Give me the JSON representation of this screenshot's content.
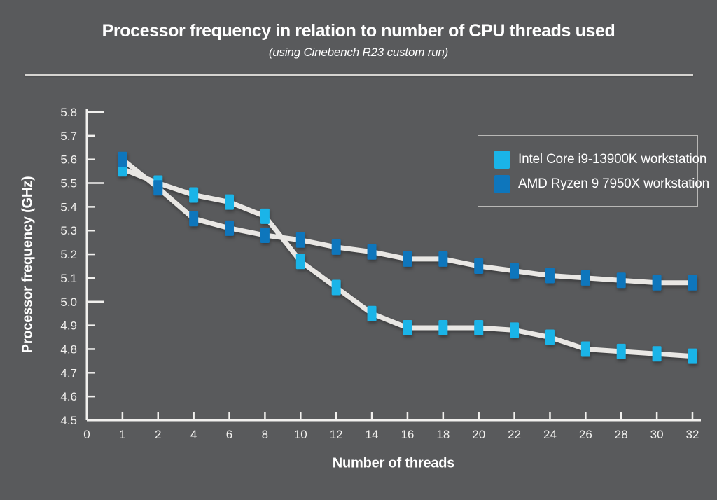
{
  "chart_data": {
    "type": "line",
    "title": "Processor frequency in relation to number of CPU threads used",
    "subtitle": "(using Cinebench R23 custom run)",
    "xlabel": "Number of threads",
    "ylabel": "Processor frequency (GHz)",
    "ylim": [
      4.5,
      5.8
    ],
    "y_tick_step": 0.1,
    "y_tick_labels": [
      "5.8",
      "5.7",
      "5.6",
      "5.5",
      "5.4",
      "5.3",
      "5.2",
      "5.1",
      "5.0",
      "4.9",
      "4.8",
      "4.7",
      "4.6",
      "4.5"
    ],
    "x_tick_labels": [
      "0",
      "1",
      "2",
      "4",
      "6",
      "8",
      "10",
      "12",
      "14",
      "16",
      "18",
      "20",
      "22",
      "24",
      "26",
      "28",
      "30",
      "32"
    ],
    "x": [
      1,
      2,
      4,
      6,
      8,
      10,
      12,
      14,
      16,
      18,
      20,
      22,
      24,
      26,
      28,
      30,
      32
    ],
    "series": [
      {
        "name": "Intel Core i9-13900K workstation",
        "color": "#1ab4e8",
        "values": [
          5.56,
          5.5,
          5.45,
          5.42,
          5.36,
          5.17,
          5.06,
          4.95,
          4.89,
          4.89,
          4.89,
          4.88,
          4.85,
          4.8,
          4.79,
          4.78,
          4.77
        ]
      },
      {
        "name": "AMD Ryzen 9 7950X workstation",
        "color": "#0e76bc",
        "values": [
          5.6,
          5.48,
          5.35,
          5.31,
          5.28,
          5.26,
          5.23,
          5.21,
          5.18,
          5.18,
          5.15,
          5.13,
          5.11,
          5.1,
          5.09,
          5.08,
          5.08
        ]
      }
    ],
    "grid": false,
    "legend_position": "top-right",
    "line_color": "#e9e7e4",
    "marker": "square"
  },
  "colors": {
    "background": "#595a5c",
    "text": "#ffffff",
    "axis": "#f1f0ee",
    "tick_text": "#f2f1ef",
    "divider": "#d6d4d1",
    "legend_border": "#b9b8b6"
  }
}
